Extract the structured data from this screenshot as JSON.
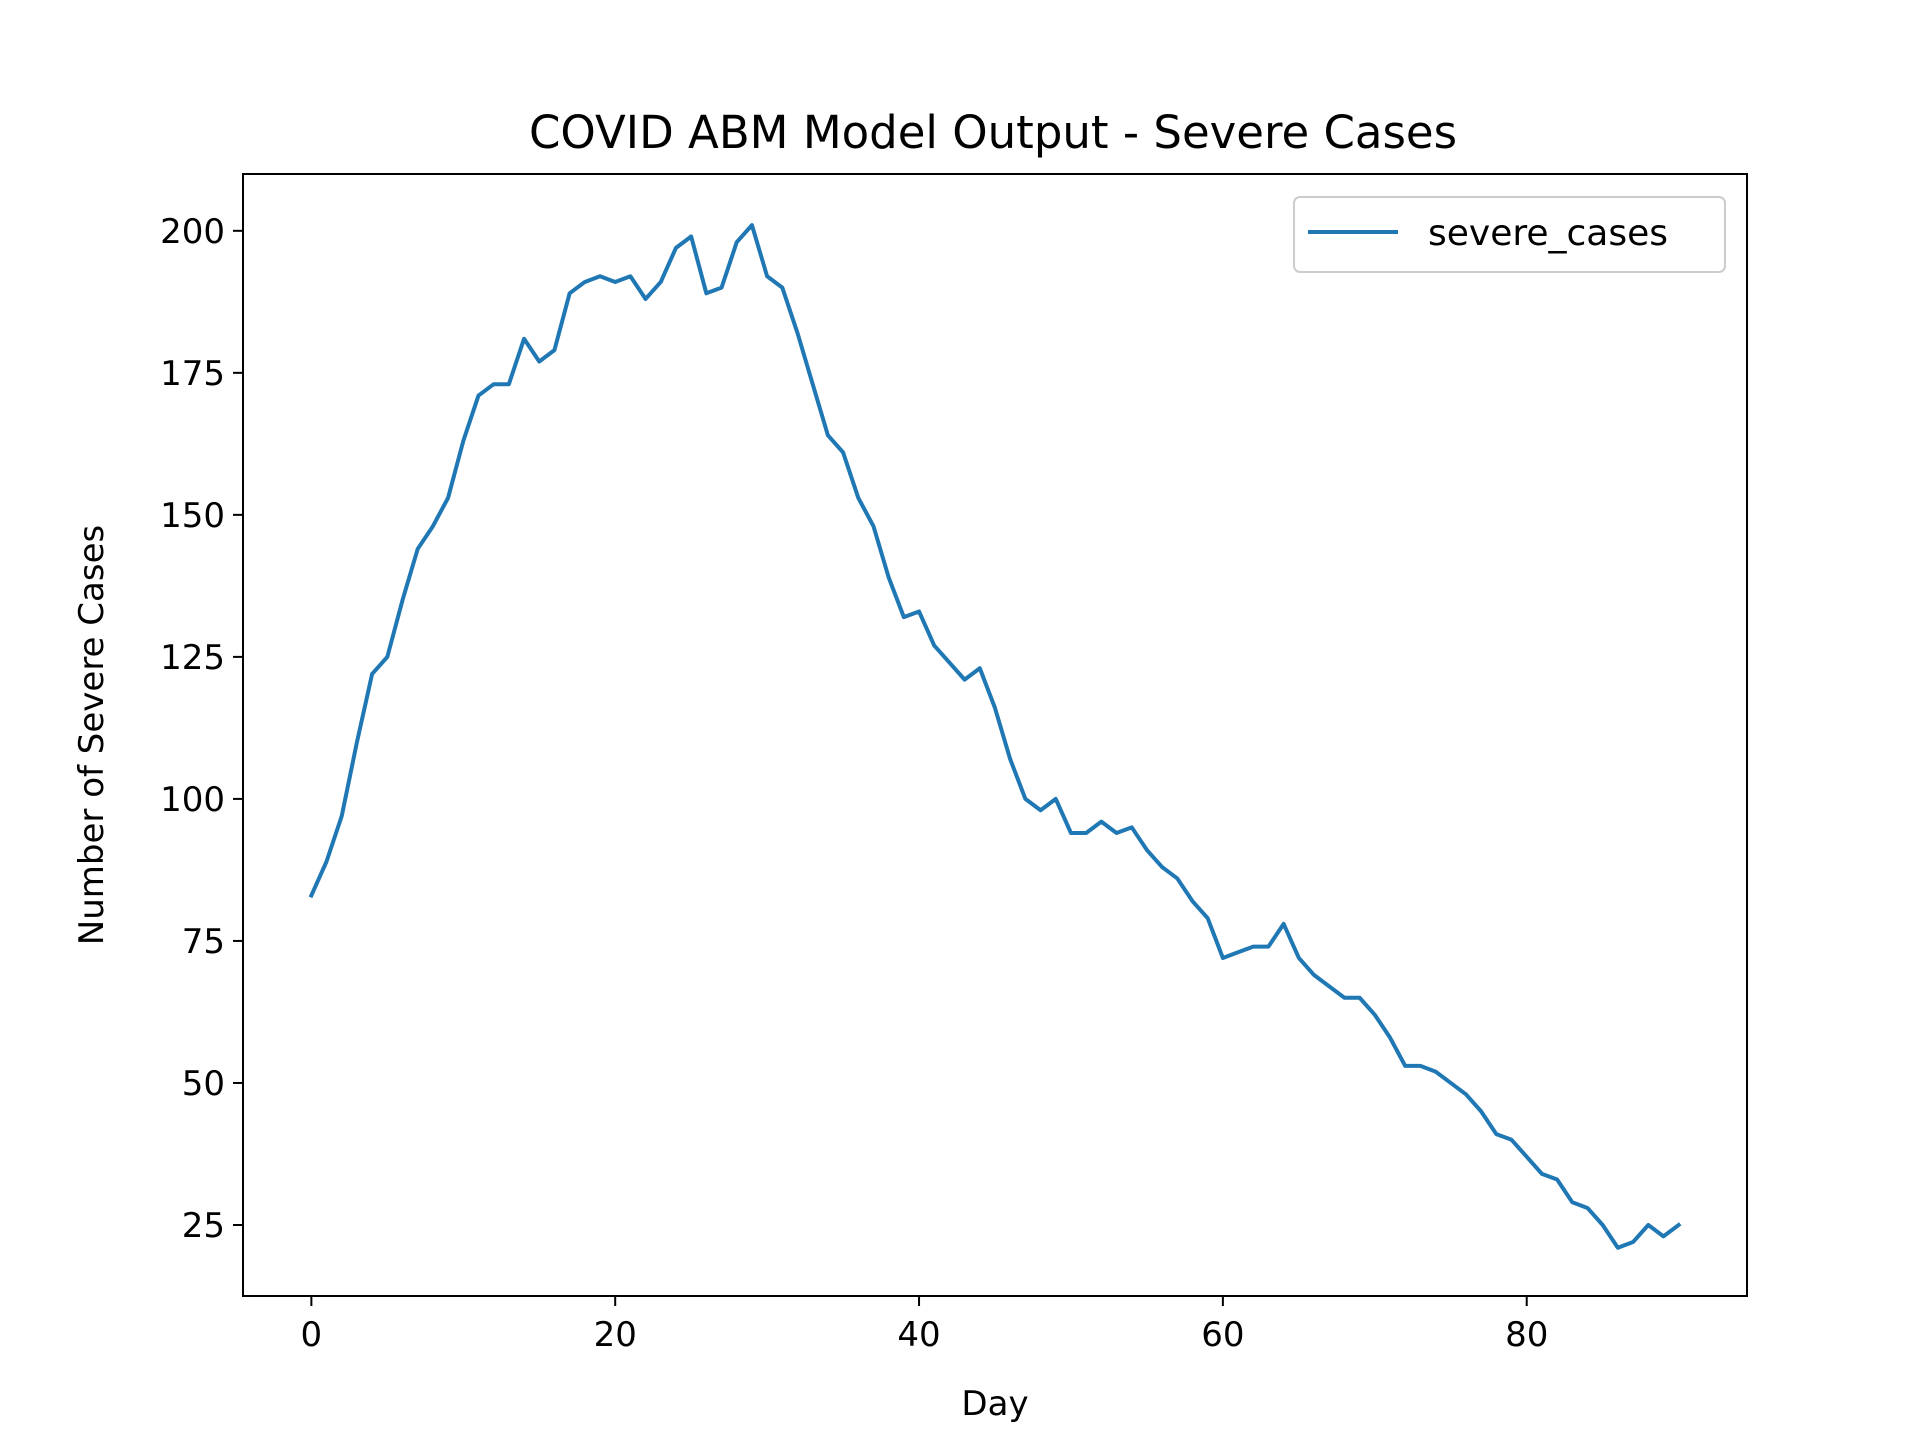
{
  "chart_data": {
    "type": "line",
    "title": "COVID ABM Model Output - Severe Cases",
    "xlabel": "Day",
    "ylabel": "Number of Severe Cases",
    "xlim": [
      -4.5,
      94.5
    ],
    "ylim": [
      12.5,
      210
    ],
    "xticks": [
      0,
      20,
      40,
      60,
      80
    ],
    "yticks": [
      25,
      50,
      75,
      100,
      125,
      150,
      175,
      200
    ],
    "grid": false,
    "legend": "top-right",
    "line_color": "#1f77b4",
    "series": [
      {
        "name": "severe_cases",
        "x": [
          0,
          1,
          2,
          3,
          4,
          5,
          6,
          7,
          8,
          9,
          10,
          11,
          12,
          13,
          14,
          15,
          16,
          17,
          18,
          19,
          20,
          21,
          22,
          23,
          24,
          25,
          26,
          27,
          28,
          29,
          30,
          31,
          32,
          33,
          34,
          35,
          36,
          37,
          38,
          39,
          40,
          41,
          42,
          43,
          44,
          45,
          46,
          47,
          48,
          49,
          50,
          51,
          52,
          53,
          54,
          55,
          56,
          57,
          58,
          59,
          60,
          61,
          62,
          63,
          64,
          65,
          66,
          67,
          68,
          69,
          70,
          71,
          72,
          73,
          74,
          75,
          76,
          77,
          78,
          79,
          80,
          81,
          82,
          83,
          84,
          85,
          86,
          87,
          88,
          89,
          90
        ],
        "values": [
          83,
          89,
          97,
          110,
          122,
          125,
          135,
          144,
          148,
          153,
          163,
          171,
          173,
          173,
          181,
          177,
          179,
          189,
          191,
          192,
          191,
          192,
          188,
          191,
          197,
          199,
          189,
          190,
          198,
          201,
          192,
          190,
          182,
          173,
          164,
          161,
          153,
          148,
          139,
          132,
          133,
          127,
          124,
          121,
          123,
          116,
          107,
          100,
          98,
          100,
          94,
          94,
          96,
          94,
          95,
          91,
          88,
          86,
          82,
          79,
          72,
          73,
          74,
          74,
          78,
          72,
          69,
          67,
          65,
          65,
          62,
          58,
          53,
          53,
          52,
          50,
          48,
          45,
          41,
          40,
          37,
          34,
          33,
          29,
          28,
          25,
          21,
          22,
          25,
          23,
          25
        ]
      }
    ]
  }
}
